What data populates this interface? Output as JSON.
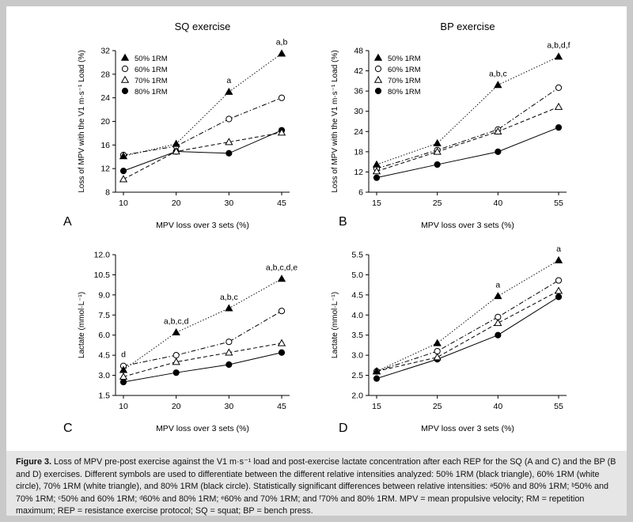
{
  "figure_caption": {
    "label": "Figure 3.",
    "text": "Loss of MPV pre-post exercise against the V1 m·s⁻¹ load and post-exercise lactate concentration after each REP for the SQ (A and C) and the BP (B and D) exercises. Different symbols are used to differentiate between the different relative intensities analyzed: 50% 1RM (black triangle), 60% 1RM (white circle), 70% 1RM (white triangle), and 80% 1RM (black circle). Statistically significant differences between relative intensities: ᵃ50% and 80% 1RM; ᵇ50% and 70% 1RM; ᶜ50% and 60% 1RM; ᵈ60% and 80% 1RM; ᵉ60% and 70% 1RM; and ᶠ70% and 80% 1RM. MPV = mean propulsive velocity; RM = repetition maximum; REP = resistance exercise protocol; SQ = squat; BP = bench press."
  },
  "legend_labels": [
    "50% 1RM",
    "60% 1RM",
    "70% 1RM",
    "80% 1RM"
  ],
  "colors": {
    "background": "#c9c9c9",
    "panel": "#ffffff",
    "caption_bg": "#e6e6e6",
    "ink": "#000000"
  },
  "chart_data": [
    {
      "panel_letter": "A",
      "type": "line",
      "title": "SQ exercise",
      "xlabel": "MPV loss over 3 sets (%)",
      "ylabel": "Loss of MPV with the V1 m·s⁻¹ Load (%)",
      "categories": [
        "10",
        "20",
        "30",
        "45"
      ],
      "ylim": [
        8,
        32
      ],
      "yticks": [
        8,
        12,
        16,
        20,
        24,
        28,
        32
      ],
      "yticklabels": [
        "8",
        "12",
        "16",
        "20",
        "24",
        "28",
        "32"
      ],
      "legend": "top-left",
      "series": [
        {
          "name": "50% 1RM",
          "values": [
            14.1,
            16.2,
            25.0,
            31.5
          ],
          "marker": "triangle-filled",
          "line": "dotted"
        },
        {
          "name": "60% 1RM",
          "values": [
            14.3,
            15.8,
            20.4,
            24.0
          ],
          "marker": "circle-open",
          "line": "dashdot"
        },
        {
          "name": "70% 1RM",
          "values": [
            10.2,
            14.9,
            16.5,
            18.1
          ],
          "marker": "triangle-open",
          "line": "dashed"
        },
        {
          "name": "80% 1RM",
          "values": [
            11.6,
            14.9,
            14.6,
            18.5
          ],
          "marker": "circle-filled",
          "line": "solid"
        }
      ],
      "annotations": [
        {
          "category": "30",
          "y": 25.0,
          "text": "a"
        },
        {
          "category": "45",
          "y": 31.5,
          "text": "a,b"
        }
      ]
    },
    {
      "panel_letter": "B",
      "type": "line",
      "title": "BP exercise",
      "xlabel": "MPV loss over 3 sets (%)",
      "ylabel": "Loss of MPV with the V1 m·s⁻¹ Load (%)",
      "categories": [
        "15",
        "25",
        "40",
        "55"
      ],
      "ylim": [
        6,
        48
      ],
      "yticks": [
        6,
        12,
        18,
        24,
        30,
        36,
        42,
        48
      ],
      "yticklabels": [
        "6",
        "12",
        "18",
        "24",
        "30",
        "36",
        "42",
        "48"
      ],
      "legend": "top-left",
      "series": [
        {
          "name": "50% 1RM",
          "values": [
            14.2,
            20.5,
            37.8,
            46.2
          ],
          "marker": "triangle-filled",
          "line": "dotted"
        },
        {
          "name": "60% 1RM",
          "values": [
            13.0,
            18.5,
            24.6,
            37.0
          ],
          "marker": "circle-open",
          "line": "dashdot"
        },
        {
          "name": "70% 1RM",
          "values": [
            12.2,
            18.0,
            24.0,
            31.3
          ],
          "marker": "triangle-open",
          "line": "dashed"
        },
        {
          "name": "80% 1RM",
          "values": [
            10.3,
            14.2,
            18.0,
            25.2
          ],
          "marker": "circle-filled",
          "line": "solid"
        }
      ],
      "annotations": [
        {
          "category": "40",
          "y": 37.8,
          "text": "a,b,c"
        },
        {
          "category": "55",
          "y": 46.2,
          "text": "a,b,d,f"
        }
      ]
    },
    {
      "panel_letter": "C",
      "type": "line",
      "title": "",
      "xlabel": "MPV loss over 3 sets (%)",
      "ylabel": "Lactate (mmol·L⁻¹)",
      "categories": [
        "10",
        "20",
        "30",
        "45"
      ],
      "ylim": [
        1.5,
        12.0
      ],
      "yticks": [
        1.5,
        3.0,
        4.5,
        6.0,
        7.5,
        9.0,
        10.5,
        12.0
      ],
      "yticklabels": [
        "1.5",
        "3.0",
        "4.5",
        "6.0",
        "7.5",
        "9.0",
        "10.5",
        "12.0"
      ],
      "series": [
        {
          "name": "50% 1RM",
          "values": [
            3.4,
            6.2,
            8.0,
            10.2
          ],
          "marker": "triangle-filled",
          "line": "dotted"
        },
        {
          "name": "60% 1RM",
          "values": [
            3.7,
            4.5,
            5.5,
            7.8
          ],
          "marker": "circle-open",
          "line": "dashdot"
        },
        {
          "name": "70% 1RM",
          "values": [
            2.9,
            4.0,
            4.7,
            5.4
          ],
          "marker": "triangle-open",
          "line": "dashed"
        },
        {
          "name": "80% 1RM",
          "values": [
            2.5,
            3.2,
            3.8,
            4.7
          ],
          "marker": "circle-filled",
          "line": "solid"
        }
      ],
      "annotations": [
        {
          "category": "10",
          "y": 3.7,
          "text": "d"
        },
        {
          "category": "20",
          "y": 6.2,
          "text": "a,b,c,d"
        },
        {
          "category": "30",
          "y": 8.0,
          "text": "a,b,c"
        },
        {
          "category": "45",
          "y": 10.2,
          "text": "a,b,c,d,e"
        }
      ]
    },
    {
      "panel_letter": "D",
      "type": "line",
      "title": "",
      "xlabel": "MPV loss over 3 sets (%)",
      "ylabel": "Lactate (mmol·L⁻¹)",
      "categories": [
        "15",
        "25",
        "40",
        "55"
      ],
      "ylim": [
        2.0,
        5.5
      ],
      "yticks": [
        2.0,
        2.5,
        3.0,
        3.5,
        4.0,
        4.5,
        5.0,
        5.5
      ],
      "yticklabels": [
        "2.0",
        "2.5",
        "3.0",
        "3.5",
        "4.0",
        "4.5",
        "5.0",
        "5.5"
      ],
      "series": [
        {
          "name": "50% 1RM",
          "values": [
            2.6,
            3.3,
            4.47,
            5.36
          ],
          "marker": "triangle-filled",
          "line": "dotted"
        },
        {
          "name": "60% 1RM",
          "values": [
            2.6,
            3.1,
            3.95,
            4.86
          ],
          "marker": "circle-open",
          "line": "dashdot"
        },
        {
          "name": "70% 1RM",
          "values": [
            2.6,
            2.95,
            3.8,
            4.6
          ],
          "marker": "triangle-open",
          "line": "dashed"
        },
        {
          "name": "80% 1RM",
          "values": [
            2.42,
            2.9,
            3.5,
            4.45
          ],
          "marker": "circle-filled",
          "line": "solid"
        }
      ],
      "annotations": [
        {
          "category": "40",
          "y": 4.47,
          "text": "a"
        },
        {
          "category": "55",
          "y": 5.36,
          "text": "a"
        }
      ]
    }
  ]
}
